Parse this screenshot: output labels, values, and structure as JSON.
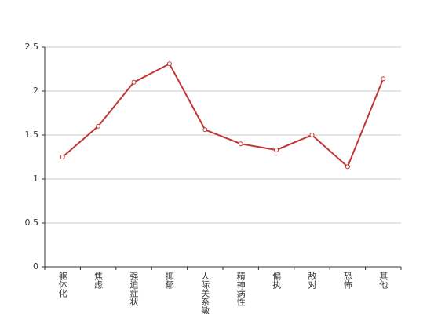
{
  "chart_data": {
    "type": "line",
    "categories": [
      "躯体化",
      "焦虑",
      "强迫症状",
      "抑郁",
      "人际关系敏感",
      "精神病性",
      "偏执",
      "敌对",
      "恐怖",
      "其他"
    ],
    "values": [
      1.25,
      1.6,
      2.1,
      2.31,
      1.56,
      1.4,
      1.33,
      1.5,
      1.14,
      2.14
    ],
    "color": "#c23531",
    "ylim": [
      0,
      2.5
    ],
    "yticks": [
      0,
      0.5,
      1,
      1.5,
      2,
      2.5
    ],
    "grid": true
  }
}
